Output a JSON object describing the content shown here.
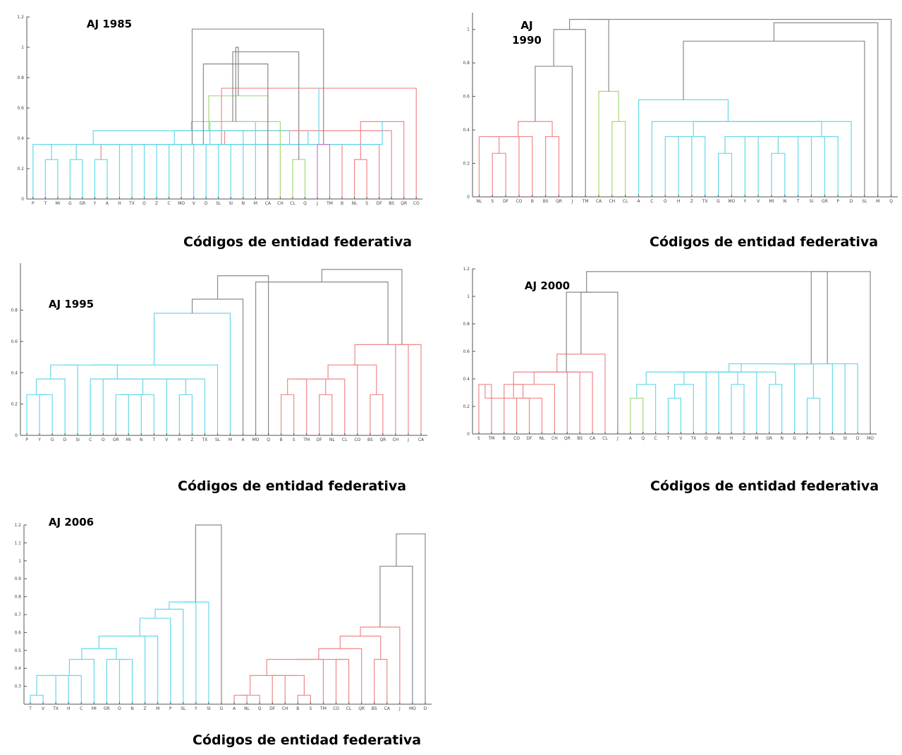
{
  "colors": {
    "cyan": "#66d9e8",
    "green": "#a3d977",
    "magenta": "#c77fd4",
    "red": "#f08888",
    "gray": "#8a8a8a",
    "axis": "#555555"
  },
  "chart_data": [
    {
      "type": "dendrogram",
      "title": "AJ 1985",
      "xlabel": "Códigos de entidad federativa",
      "ylabel": "",
      "ylim": [
        0,
        1.2
      ],
      "yticks": [
        "0",
        "0.2",
        "0.4",
        "0.6",
        "0.8",
        "1",
        "1.2"
      ],
      "ytick_values": [
        0,
        0.2,
        0.4,
        0.6,
        0.8,
        1,
        1.2
      ],
      "leaves": [
        "P",
        "T",
        "MI",
        "G",
        "GR",
        "Y",
        "A",
        "H",
        "TX",
        "O",
        "Z",
        "C",
        "MO",
        "V",
        "D",
        "SL",
        "SI",
        "N",
        "M",
        "CA",
        "CH",
        "CL",
        "Q",
        "J",
        "TM",
        "B",
        "NL",
        "S",
        "DF",
        "BS",
        "QR",
        "CO"
      ],
      "merges": [
        [
          1,
          2,
          0.26,
          "cyan"
        ],
        [
          3,
          4,
          0.26,
          "cyan"
        ],
        [
          5,
          6,
          0.26,
          "cyan"
        ],
        [
          13,
          14,
          0.36,
          "cyan"
        ],
        [
          15,
          16,
          0.36,
          "cyan"
        ],
        [
          26,
          27,
          0.26,
          "red"
        ],
        [
          25,
          34,
          0.36,
          "red"
        ],
        [
          28,
          35,
          0.36,
          "red"
        ],
        [
          29,
          36,
          0.45,
          "red"
        ],
        [
          30,
          37,
          0.51,
          "red"
        ],
        [
          31,
          38,
          0.73,
          "red"
        ],
        [
          0,
          32,
          0.36,
          "cyan"
        ],
        [
          33,
          40,
          0.36,
          "cyan"
        ],
        [
          7,
          41,
          0.36,
          "cyan"
        ],
        [
          8,
          42,
          0.36,
          "cyan"
        ],
        [
          9,
          43,
          0.36,
          "cyan"
        ],
        [
          10,
          44,
          0.36,
          "cyan"
        ],
        [
          11,
          45,
          0.36,
          "cyan"
        ],
        [
          12,
          46,
          0.36,
          "cyan"
        ],
        [
          47,
          39,
          0.45,
          "cyan"
        ],
        [
          48,
          17,
          0.45,
          "cyan"
        ],
        [
          49,
          18,
          0.51,
          "cyan"
        ],
        [
          21,
          22,
          0.26,
          "green"
        ],
        [
          20,
          51,
          0.51,
          "green"
        ],
        [
          19,
          52,
          0.68,
          "green"
        ],
        [
          23,
          24,
          0.36,
          "magenta"
        ],
        [
          50,
          19,
          0.89,
          "gray"
        ],
        [
          53,
          54,
          0.97,
          "gray"
        ],
        [
          55,
          56,
          1.0,
          "gray"
        ],
        [
          57,
          44,
          1.12,
          "gray"
        ]
      ]
    },
    {
      "type": "dendrogram",
      "title": "AJ 1990",
      "xlabel": "Códigos de entidad federativa",
      "ylabel": "",
      "ylim": [
        0,
        1.1
      ],
      "yticks": [
        "0",
        "0.2",
        "0.4",
        "0.6",
        "0.8",
        "1"
      ],
      "ytick_values": [
        0,
        0.2,
        0.4,
        0.6,
        0.8,
        1
      ],
      "leaves": [
        "NL",
        "S",
        "DF",
        "CO",
        "B",
        "BS",
        "QR",
        "J",
        "TM",
        "CA",
        "CH",
        "CL",
        "A",
        "C",
        "O",
        "H",
        "Z",
        "TX",
        "G",
        "MO",
        "Y",
        "V",
        "MI",
        "N",
        "T",
        "SI",
        "GR",
        "P",
        "D",
        "SL",
        "M",
        "Q"
      ],
      "merges": [
        [
          1,
          2,
          0.26,
          "red"
        ],
        [
          0,
          32,
          0.36,
          "red"
        ],
        [
          3,
          33,
          0.36,
          "red"
        ],
        [
          4,
          34,
          0.36,
          "red"
        ],
        [
          5,
          6,
          0.36,
          "red"
        ],
        [
          35,
          36,
          0.45,
          "red"
        ],
        [
          37,
          7,
          0.78,
          "gray"
        ],
        [
          10,
          11,
          0.45,
          "green"
        ],
        [
          9,
          39,
          0.63,
          "green"
        ],
        [
          18,
          19,
          0.26,
          "cyan"
        ],
        [
          22,
          23,
          0.26,
          "cyan"
        ],
        [
          41,
          20,
          0.36,
          "cyan"
        ],
        [
          42,
          24,
          0.36,
          "cyan"
        ],
        [
          43,
          44,
          0.36,
          "cyan"
        ],
        [
          45,
          21,
          0.36,
          "cyan"
        ],
        [
          46,
          25,
          0.36,
          "cyan"
        ],
        [
          47,
          26,
          0.36,
          "cyan"
        ],
        [
          48,
          27,
          0.36,
          "cyan"
        ],
        [
          14,
          15,
          0.36,
          "cyan"
        ],
        [
          50,
          16,
          0.36,
          "cyan"
        ],
        [
          51,
          17,
          0.36,
          "cyan"
        ],
        [
          52,
          49,
          0.45,
          "cyan"
        ],
        [
          53,
          28,
          0.45,
          "cyan"
        ],
        [
          54,
          13,
          0.45,
          "cyan"
        ],
        [
          55,
          12,
          0.58,
          "cyan"
        ],
        [
          38,
          8,
          1.0,
          "gray"
        ],
        [
          56,
          29,
          0.93,
          "gray"
        ],
        [
          58,
          30,
          1.04,
          "gray"
        ],
        [
          57,
          40,
          1.06,
          "gray"
        ],
        [
          60,
          31,
          1.06,
          "gray"
        ]
      ]
    },
    {
      "type": "dendrogram",
      "title": "AJ 1995",
      "xlabel": "Códigos de entidad federativa",
      "ylabel": "",
      "ylim": [
        0,
        1.1
      ],
      "yticks": [
        "0",
        "0.2",
        "0.4",
        "0.6",
        "0.8"
      ],
      "ytick_values": [
        0,
        0.2,
        0.4,
        0.6,
        0.8
      ],
      "leaves": [
        "P",
        "Y",
        "G",
        "D",
        "SI",
        "C",
        "O",
        "GR",
        "MI",
        "N",
        "T",
        "V",
        "H",
        "Z",
        "TX",
        "SL",
        "M",
        "A",
        "MO",
        "Q",
        "B",
        "S",
        "TM",
        "DF",
        "NL",
        "CL",
        "CO",
        "BS",
        "QR",
        "CH",
        "J",
        "CA"
      ],
      "merges": [
        [
          1,
          2,
          0.26,
          "cyan"
        ],
        [
          0,
          32,
          0.26,
          "cyan"
        ],
        [
          33,
          3,
          0.36,
          "cyan"
        ],
        [
          7,
          8,
          0.26,
          "cyan"
        ],
        [
          35,
          9,
          0.26,
          "cyan"
        ],
        [
          36,
          10,
          0.26,
          "cyan"
        ],
        [
          12,
          13,
          0.26,
          "cyan"
        ],
        [
          37,
          38,
          0.36,
          "cyan"
        ],
        [
          39,
          11,
          0.36,
          "cyan"
        ],
        [
          40,
          14,
          0.36,
          "cyan"
        ],
        [
          6,
          41,
          0.36,
          "cyan"
        ],
        [
          5,
          42,
          0.36,
          "cyan"
        ],
        [
          34,
          4,
          0.45,
          "cyan"
        ],
        [
          44,
          43,
          0.45,
          "cyan"
        ],
        [
          45,
          15,
          0.45,
          "cyan"
        ],
        [
          46,
          16,
          0.78,
          "cyan"
        ],
        [
          20,
          21,
          0.26,
          "red"
        ],
        [
          23,
          24,
          0.26,
          "red"
        ],
        [
          48,
          22,
          0.36,
          "red"
        ],
        [
          50,
          49,
          0.36,
          "red"
        ],
        [
          51,
          25,
          0.36,
          "red"
        ],
        [
          27,
          28,
          0.26,
          "red"
        ],
        [
          52,
          53,
          0.45,
          "red"
        ],
        [
          54,
          26,
          0.45,
          "red"
        ],
        [
          29,
          30,
          0.58,
          "red"
        ],
        [
          55,
          31,
          0.58,
          "red"
        ],
        [
          47,
          17,
          0.87,
          "gray"
        ],
        [
          57,
          18,
          0.98,
          "gray"
        ],
        [
          58,
          19,
          1.02,
          "gray"
        ],
        [
          59,
          56,
          1.06,
          "gray"
        ]
      ]
    },
    {
      "type": "dendrogram",
      "title": "AJ 2000",
      "xlabel": "Códigos de entidad federativa",
      "ylabel": "",
      "ylim": [
        0,
        1.2
      ],
      "yticks": [
        "0",
        "0.2",
        "0.4",
        "0.6",
        "0.8",
        "1",
        "1.2"
      ],
      "ytick_values": [
        0,
        0.2,
        0.4,
        0.6,
        0.8,
        1,
        1.2
      ],
      "leaves": [
        "S",
        "TM",
        "B",
        "CO",
        "DF",
        "NL",
        "CH",
        "QR",
        "BS",
        "CA",
        "CL",
        "J",
        "A",
        "Q",
        "C",
        "T",
        "V",
        "TX",
        "O",
        "MI",
        "H",
        "Z",
        "M",
        "GR",
        "N",
        "G",
        "P",
        "Y",
        "SL",
        "SI",
        "D",
        "MO"
      ],
      "merges": [
        [
          0,
          1,
          0.36,
          "red"
        ],
        [
          3,
          4,
          0.26,
          "red"
        ],
        [
          32,
          5,
          0.26,
          "red"
        ],
        [
          2,
          33,
          0.36,
          "red"
        ],
        [
          34,
          6,
          0.36,
          "red"
        ],
        [
          35,
          7,
          0.45,
          "red"
        ],
        [
          36,
          8,
          0.45,
          "red"
        ],
        [
          37,
          9,
          0.45,
          "red"
        ],
        [
          38,
          10,
          0.58,
          "red"
        ],
        [
          39,
          11,
          1.03,
          "gray"
        ],
        [
          12,
          13,
          0.26,
          "green"
        ],
        [
          15,
          16,
          0.26,
          "cyan"
        ],
        [
          14,
          42,
          0.36,
          "cyan"
        ],
        [
          43,
          17,
          0.36,
          "cyan"
        ],
        [
          44,
          18,
          0.45,
          "cyan"
        ],
        [
          20,
          21,
          0.36,
          "cyan"
        ],
        [
          45,
          19,
          0.45,
          "cyan"
        ],
        [
          47,
          46,
          0.45,
          "cyan"
        ],
        [
          23,
          24,
          0.36,
          "cyan"
        ],
        [
          48,
          22,
          0.45,
          "cyan"
        ],
        [
          49,
          50,
          0.45,
          "cyan"
        ],
        [
          26,
          27,
          0.26,
          "cyan"
        ],
        [
          51,
          25,
          0.51,
          "cyan"
        ],
        [
          52,
          53,
          0.51,
          "cyan"
        ],
        [
          54,
          28,
          0.51,
          "cyan"
        ],
        [
          55,
          29,
          0.51,
          "cyan"
        ],
        [
          56,
          30,
          0.51,
          "cyan"
        ],
        [
          40,
          41,
          1.03,
          "gray"
        ],
        [
          57,
          31,
          1.18,
          "gray"
        ],
        [
          58,
          59,
          1.18,
          "gray"
        ]
      ]
    },
    {
      "type": "dendrogram",
      "title": "AJ 2006",
      "xlabel": "Códigos de entidad federativa",
      "ylabel": "",
      "ylim": [
        0.2,
        1.2
      ],
      "yticks": [
        "0.3",
        "0.4",
        "0.5",
        "0.6",
        "0.7",
        "0.8",
        "0.9",
        "1",
        "1.1",
        "1.2"
      ],
      "ytick_values": [
        0.3,
        0.4,
        0.5,
        0.6,
        0.7,
        0.8,
        0.9,
        1,
        1.1,
        1.2
      ],
      "leaves": [
        "T",
        "V",
        "TX",
        "H",
        "C",
        "MI",
        "GR",
        "O",
        "N",
        "Z",
        "M",
        "P",
        "SL",
        "Y",
        "SI",
        "G",
        "A",
        "NL",
        "Q",
        "DF",
        "CH",
        "B",
        "S",
        "TM",
        "CO",
        "CL",
        "QR",
        "BS",
        "CA",
        "J",
        "MO",
        "D"
      ],
      "merges": [
        [
          0,
          1,
          0.25,
          "cyan"
        ],
        [
          32,
          2,
          0.36,
          "cyan"
        ],
        [
          33,
          3,
          0.36,
          "cyan"
        ],
        [
          34,
          4,
          0.36,
          "cyan"
        ],
        [
          7,
          8,
          0.45,
          "cyan"
        ],
        [
          6,
          36,
          0.45,
          "cyan"
        ],
        [
          35,
          5,
          0.45,
          "cyan"
        ],
        [
          38,
          37,
          0.51,
          "cyan"
        ],
        [
          39,
          9,
          0.58,
          "cyan"
        ],
        [
          40,
          10,
          0.58,
          "cyan"
        ],
        [
          41,
          11,
          0.68,
          "cyan"
        ],
        [
          42,
          12,
          0.73,
          "cyan"
        ],
        [
          43,
          13,
          0.77,
          "cyan"
        ],
        [
          44,
          14,
          0.77,
          "cyan"
        ],
        [
          45,
          15,
          1.2,
          "gray"
        ],
        [
          16,
          17,
          0.25,
          "red"
        ],
        [
          47,
          18,
          0.25,
          "red"
        ],
        [
          21,
          22,
          0.25,
          "red"
        ],
        [
          20,
          49,
          0.36,
          "red"
        ],
        [
          19,
          50,
          0.36,
          "red"
        ],
        [
          48,
          51,
          0.36,
          "red"
        ],
        [
          24,
          25,
          0.45,
          "red"
        ],
        [
          52,
          23,
          0.45,
          "red"
        ],
        [
          53,
          54,
          0.45,
          "red"
        ],
        [
          55,
          26,
          0.51,
          "red"
        ],
        [
          27,
          28,
          0.45,
          "red"
        ],
        [
          56,
          57,
          0.58,
          "red"
        ],
        [
          58,
          29,
          0.63,
          "red"
        ],
        [
          59,
          30,
          0.97,
          "gray"
        ],
        [
          60,
          31,
          1.15,
          "gray"
        ]
      ]
    }
  ]
}
